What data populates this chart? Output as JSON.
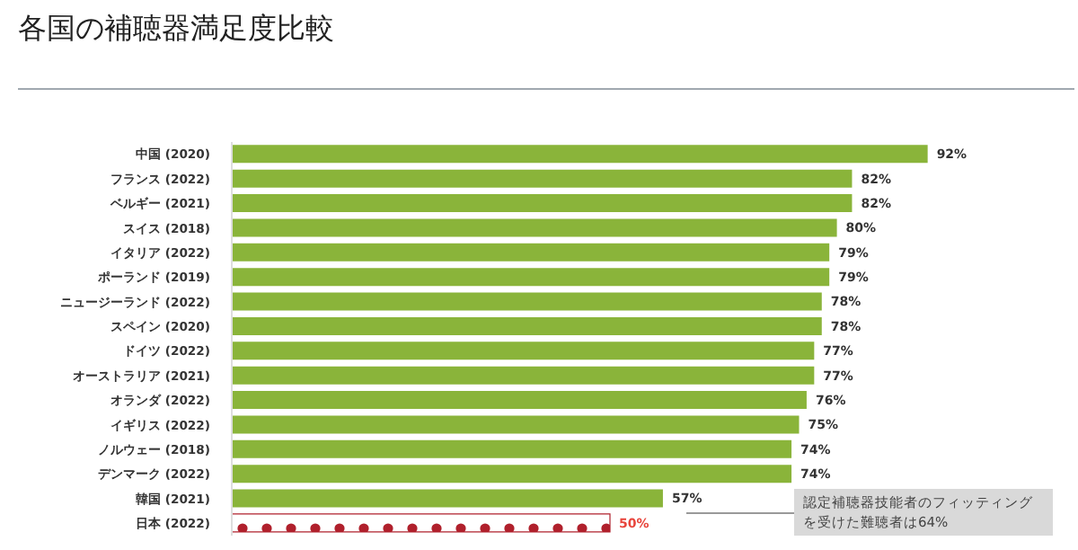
{
  "chart_data": {
    "type": "bar",
    "orientation": "horizontal",
    "title": "各国の補聴器満足度比較",
    "categories": [
      "中国 (2020)",
      "フランス (2022)",
      "ベルギー (2021)",
      "スイス (2018)",
      "イタリア (2022)",
      "ポーランド (2019)",
      "ニュージーランド (2022)",
      "スペイン (2020)",
      "ドイツ (2022)",
      "オーストラリア (2021)",
      "オランダ (2022)",
      "イギリス (2022)",
      "ノルウェー (2018)",
      "デンマーク (2022)",
      "韓国 (2021)",
      "日本 (2022)"
    ],
    "values": [
      92,
      82,
      82,
      80,
      79,
      79,
      78,
      78,
      77,
      77,
      76,
      75,
      74,
      74,
      57,
      50
    ],
    "value_labels": [
      "92%",
      "82%",
      "82%",
      "80%",
      "79%",
      "79%",
      "78%",
      "78%",
      "77%",
      "77%",
      "76%",
      "75%",
      "74%",
      "74%",
      "57%",
      "50%"
    ],
    "colors": [
      "#8ab43a",
      "#8ab43a",
      "#8ab43a",
      "#8ab43a",
      "#8ab43a",
      "#8ab43a",
      "#8ab43a",
      "#8ab43a",
      "#8ab43a",
      "#8ab43a",
      "#8ab43a",
      "#8ab43a",
      "#8ab43a",
      "#8ab43a",
      "#8ab43a",
      "#b0202c"
    ],
    "tick_labels": "y",
    "annotations": [
      "認定補聴器技能者のフィッティングを受けた難聴者は64%"
    ]
  }
}
